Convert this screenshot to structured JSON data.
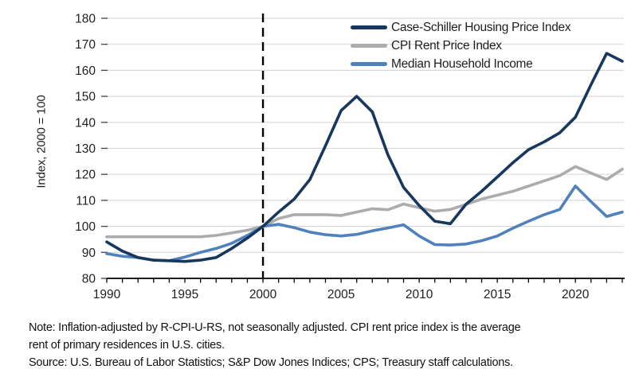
{
  "chart_data": {
    "type": "line",
    "title": "",
    "xlabel": "",
    "ylabel": "Index, 2000 = 100",
    "ylim": [
      80,
      180
    ],
    "ytick_step": 10,
    "yticks": [
      80,
      90,
      100,
      110,
      120,
      130,
      140,
      150,
      160,
      170,
      180
    ],
    "xlim": [
      1990,
      2023
    ],
    "xticks_labeled": [
      1990,
      1995,
      2000,
      2005,
      2010,
      2015,
      2020
    ],
    "xtick_minor_step": 1,
    "grid": "horizontal",
    "grid_color": "#D9D9D9",
    "axis_color": "#000000",
    "legend_position": "top-right-inside",
    "reference_line": {
      "type": "vertical-dashed",
      "x": 2000,
      "color": "#000000"
    },
    "x": [
      1990,
      1991,
      1992,
      1993,
      1994,
      1995,
      1996,
      1997,
      1998,
      1999,
      2000,
      2001,
      2002,
      2003,
      2004,
      2005,
      2006,
      2007,
      2008,
      2009,
      2010,
      2011,
      2012,
      2013,
      2014,
      2015,
      2016,
      2017,
      2018,
      2019,
      2020,
      2021,
      2022,
      2023
    ],
    "series": [
      {
        "name": "Case-Schiller Housing Price Index",
        "color": "#17375E",
        "values": [
          94,
          90.5,
          88,
          87,
          86.8,
          86.5,
          87,
          88,
          91.5,
          95.5,
          100,
          105.5,
          110.5,
          118,
          131,
          144.5,
          150,
          144,
          127.5,
          115,
          108,
          102,
          101,
          108.5,
          113.5,
          119,
          124.5,
          129.5,
          132.5,
          136,
          142,
          154.5,
          166.5,
          163.5
        ]
      },
      {
        "name": "CPI Rent Price Index",
        "color": "#ACACAC",
        "values": [
          96,
          96,
          96,
          96,
          96,
          96,
          96,
          96.5,
          97.5,
          98.5,
          100,
          103,
          104.5,
          104.5,
          104.5,
          104.2,
          105.5,
          106.8,
          106.4,
          108.6,
          107.2,
          105.8,
          106.5,
          108.4,
          110.5,
          112,
          113.5,
          115.5,
          117.5,
          119.5,
          123,
          120.5,
          118,
          122
        ]
      },
      {
        "name": "Median Household Income",
        "color": "#4F81BD",
        "values": [
          89.5,
          88.5,
          88,
          87,
          86.8,
          88.2,
          90,
          91.5,
          93.5,
          96.5,
          100,
          100.8,
          99.5,
          97.8,
          96.8,
          96.3,
          96.9,
          98.3,
          99.4,
          100.6,
          96.3,
          93,
          92.8,
          93.2,
          94.5,
          96.3,
          99.3,
          102,
          104.5,
          106.5,
          115.5,
          109.5,
          103.8,
          105.5
        ]
      }
    ]
  },
  "notes": {
    "note_line1": "Note: Inflation-adjusted by R-CPI-U-RS, not seasonally adjusted. CPI rent price index is the average",
    "note_line2": "rent of primary residences in U.S. cities.",
    "source_line": "Source: U.S. Bureau of Labor Statistics; S&P Dow Jones Indices; CPS; Treasury staff calculations."
  }
}
